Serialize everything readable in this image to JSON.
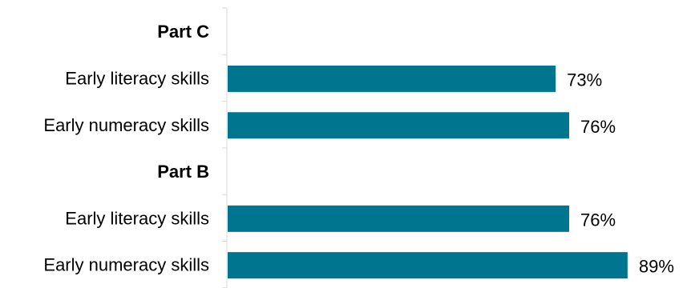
{
  "chart_data": {
    "type": "bar",
    "orientation": "horizontal",
    "unit": "%",
    "xlim": [
      0,
      100
    ],
    "grid": false,
    "bar_color": "#00758F",
    "separator_color": "#D9D9D9",
    "rows": [
      {
        "kind": "group",
        "label": "Part C"
      },
      {
        "kind": "bar",
        "label": "Early literacy skills",
        "value": 73,
        "value_label": "73%"
      },
      {
        "kind": "bar",
        "label": "Early numeracy skills",
        "value": 76,
        "value_label": "76%"
      },
      {
        "kind": "group",
        "label": "Part B"
      },
      {
        "kind": "bar",
        "label": "Early literacy skills",
        "value": 76,
        "value_label": "76%"
      },
      {
        "kind": "bar",
        "label": "Early numeracy skills",
        "value": 89,
        "value_label": "89%"
      }
    ]
  }
}
